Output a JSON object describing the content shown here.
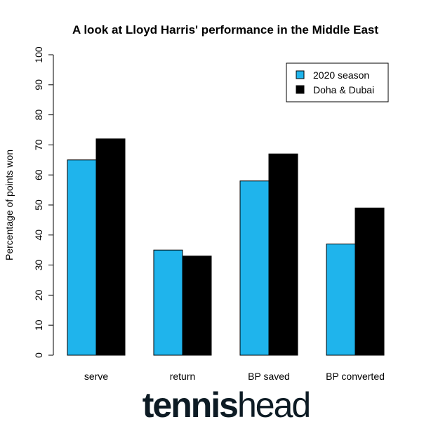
{
  "chart_data": {
    "type": "bar",
    "title": "A look at Lloyd Harris' performance in the Middle East",
    "xlabel": "",
    "ylabel": "Percentage of points won",
    "ylim": [
      0,
      100
    ],
    "yticks": [
      0,
      10,
      20,
      30,
      40,
      50,
      60,
      70,
      80,
      90,
      100
    ],
    "categories": [
      "serve",
      "return",
      "BP saved",
      "BP converted"
    ],
    "series": [
      {
        "name": "2020 season",
        "color": "#1fb4ec",
        "values": [
          65,
          35,
          58,
          37
        ]
      },
      {
        "name": "Doha & Dubai",
        "color": "#000000",
        "values": [
          72,
          33,
          67,
          49
        ]
      }
    ],
    "legend_position": "top-right",
    "grid": false
  },
  "branding": {
    "logo_bold": "tennis",
    "logo_light": "head"
  }
}
